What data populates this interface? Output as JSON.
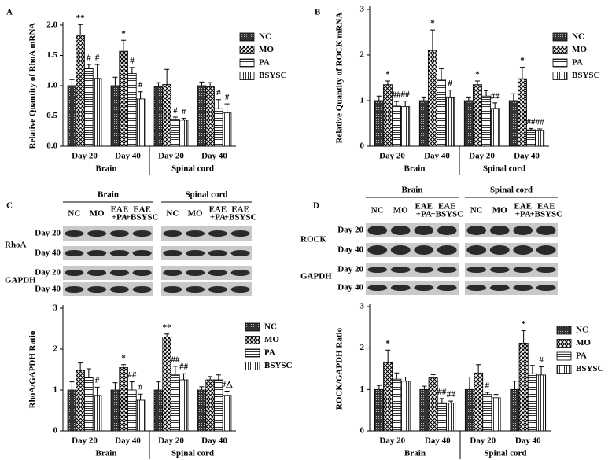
{
  "chart_data": [
    {
      "type": "bar",
      "panel": "A",
      "ylabel": "Relative Quantity of RhoA mRNA",
      "categories": [
        "Day 20",
        "Day 40",
        "Day 20",
        "Day 40"
      ],
      "group_labels": [
        "Brain",
        "Spinal cord"
      ],
      "ylim": [
        0,
        2
      ],
      "yticks": [
        {
          "value": 0,
          "label": "0.0"
        },
        0.5,
        {
          "value": 1,
          "label": "1.0"
        },
        1.5,
        {
          "value": 2,
          "label": "2.0"
        }
      ],
      "series": [
        {
          "name": "NC",
          "values": [
            1.0,
            1.0,
            0.98,
            1.0
          ],
          "errors": [
            0.1,
            0.14,
            0.07,
            0.06
          ],
          "annotations": [
            null,
            null,
            null,
            null
          ]
        },
        {
          "name": "MO",
          "values": [
            1.83,
            1.57,
            1.02,
            0.98
          ],
          "errors": [
            0.18,
            0.18,
            0.25,
            0.07
          ],
          "annotations": [
            "**",
            "*",
            null,
            null
          ]
        },
        {
          "name": "PA",
          "values": [
            1.28,
            1.2,
            0.45,
            0.62
          ],
          "errors": [
            0.07,
            0.1,
            0.03,
            0.15
          ],
          "annotations": [
            "#",
            "#",
            "#",
            "#"
          ]
        },
        {
          "name": "BSYSC",
          "values": [
            1.12,
            0.78,
            0.43,
            0.55
          ],
          "errors": [
            0.23,
            0.12,
            0.03,
            0.15
          ],
          "annotations": [
            "#",
            "#",
            "#",
            "#"
          ]
        }
      ]
    },
    {
      "type": "bar",
      "panel": "B",
      "ylabel": "Relative Quantity of ROCK mRNA",
      "categories": [
        "Day 20",
        "Day 40",
        "Day 20",
        "Day 40"
      ],
      "group_labels": [
        "Brain",
        "Spinal cord"
      ],
      "ylim": [
        0,
        3
      ],
      "yticks": [
        0,
        1,
        2,
        3
      ],
      "series": [
        {
          "name": "NC",
          "values": [
            1.0,
            1.0,
            1.0,
            1.0
          ],
          "errors": [
            0.1,
            0.08,
            0.08,
            0.15
          ],
          "annotations": [
            null,
            null,
            null,
            null
          ]
        },
        {
          "name": "MO",
          "values": [
            1.35,
            2.1,
            1.35,
            1.48
          ],
          "errors": [
            0.08,
            0.45,
            0.08,
            0.25
          ],
          "annotations": [
            "*",
            "*",
            "*",
            "*"
          ]
        },
        {
          "name": "PA",
          "values": [
            0.88,
            1.45,
            1.1,
            0.36
          ],
          "errors": [
            0.1,
            0.25,
            0.12,
            0.03
          ],
          "annotations": [
            "##",
            null,
            null,
            "##"
          ]
        },
        {
          "name": "BSYSC",
          "values": [
            0.87,
            1.08,
            0.83,
            0.35
          ],
          "errors": [
            0.12,
            0.15,
            0.12,
            0.03
          ],
          "annotations": [
            "##",
            "#",
            "##",
            "##"
          ]
        }
      ]
    },
    {
      "type": "bar",
      "panel": "C",
      "ylabel": "RhoA/GAPDH Ratio",
      "categories": [
        "Day 20",
        "Day 40",
        "Day 20",
        "Day 40"
      ],
      "group_labels": [
        "Brain",
        "Spinal cord"
      ],
      "ylim": [
        0,
        3
      ],
      "yticks": [
        0,
        1,
        2,
        3
      ],
      "series": [
        {
          "name": "NC",
          "values": [
            1.0,
            1.0,
            1.0,
            1.0
          ],
          "errors": [
            0.2,
            0.18,
            0.2,
            0.08
          ],
          "annotations": [
            null,
            null,
            null,
            null
          ]
        },
        {
          "name": "MO",
          "values": [
            1.48,
            1.55,
            2.3,
            1.25
          ],
          "errors": [
            0.18,
            0.07,
            0.07,
            0.08
          ],
          "annotations": [
            null,
            "*",
            "**",
            null
          ]
        },
        {
          "name": "PA",
          "values": [
            1.3,
            1.0,
            1.38,
            1.25
          ],
          "errors": [
            0.22,
            0.2,
            0.2,
            0.12
          ],
          "annotations": [
            null,
            "##",
            "##",
            null
          ]
        },
        {
          "name": "BSYSC",
          "values": [
            0.87,
            0.75,
            1.25,
            0.87
          ],
          "errors": [
            0.2,
            0.15,
            0.15,
            0.1
          ],
          "annotations": [
            "#",
            "#",
            "##",
            "#△"
          ]
        }
      ]
    },
    {
      "type": "bar",
      "panel": "D",
      "ylabel": "ROCK/GAPDH Ratio",
      "categories": [
        "Day 20",
        "Day 40",
        "Day 20",
        "Day 40"
      ],
      "group_labels": [
        "Brain",
        "Spinal cord"
      ],
      "ylim": [
        0,
        3
      ],
      "yticks": [
        0,
        1,
        2,
        3
      ],
      "series": [
        {
          "name": "NC",
          "values": [
            1.0,
            1.0,
            1.0,
            1.0
          ],
          "errors": [
            0.1,
            0.08,
            0.3,
            0.2
          ],
          "annotations": [
            null,
            null,
            null,
            null
          ]
        },
        {
          "name": "MO",
          "values": [
            1.65,
            1.28,
            1.4,
            2.12
          ],
          "errors": [
            0.3,
            0.08,
            0.2,
            0.3
          ],
          "annotations": [
            "*",
            null,
            null,
            "*"
          ]
        },
        {
          "name": "PA",
          "values": [
            1.25,
            0.68,
            0.88,
            1.38
          ],
          "errors": [
            0.15,
            0.1,
            0.05,
            0.2
          ],
          "annotations": [
            null,
            "##",
            "#",
            null
          ]
        },
        {
          "name": "BSYSC",
          "values": [
            1.2,
            0.67,
            0.8,
            1.35
          ],
          "errors": [
            0.1,
            0.05,
            0.08,
            0.2
          ],
          "annotations": [
            null,
            "##",
            null,
            "#"
          ]
        }
      ]
    }
  ],
  "blots": [
    {
      "regions": [
        "Brain",
        "Spinal cord"
      ],
      "lanes": [
        [
          "NC"
        ],
        [
          "MO"
        ],
        [
          "EAE",
          "+PA"
        ],
        [
          "EAE",
          "+BSYSC"
        ]
      ],
      "rows": [
        "Day 20",
        "Day 40",
        "Day 20",
        "Day 40"
      ],
      "proteins": [
        "RhoA",
        "GAPDH"
      ]
    },
    {
      "regions": [
        "Brain",
        "Spinal cord"
      ],
      "lanes": [
        [
          "NC"
        ],
        [
          "MO"
        ],
        [
          "EAE",
          "+PA"
        ],
        [
          "EAE",
          "+BSYSC"
        ]
      ],
      "rows": [
        "Day 20",
        "Day 40",
        "Day 20",
        "Day 40"
      ],
      "proteins": [
        "ROCK",
        "GAPDH"
      ]
    }
  ]
}
